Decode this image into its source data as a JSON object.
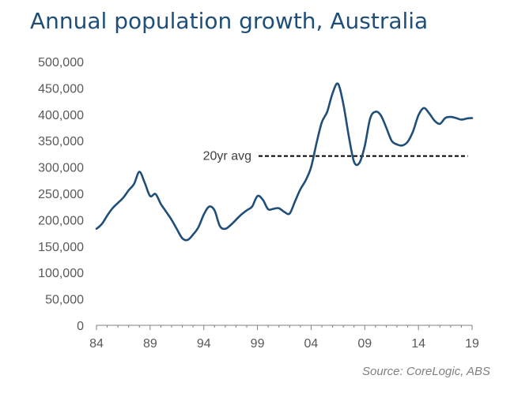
{
  "title": "Annual population growth, Australia",
  "source": "Source: CoreLogic, ABS",
  "colors": {
    "line": "#1f4e79",
    "title": "#1f4e79",
    "axis": "#808080",
    "avg": "#000000"
  },
  "chart_data": {
    "type": "line",
    "title": "Annual population growth, Australia",
    "xlabel": "",
    "ylabel": "",
    "x_ticks": [
      "84",
      "89",
      "94",
      "99",
      "04",
      "09",
      "14",
      "19"
    ],
    "y_ticks": [
      "0",
      "50,000",
      "100,000",
      "150,000",
      "200,000",
      "250,000",
      "300,000",
      "350,000",
      "400,000",
      "450,000",
      "500,000"
    ],
    "xlim": [
      1984,
      2019
    ],
    "ylim": [
      0,
      500000
    ],
    "grid": false,
    "series": [
      {
        "x": [
          1984.0,
          1984.5,
          1985.0,
          1985.5,
          1986.0,
          1986.5,
          1987.0,
          1987.5,
          1988.0,
          1988.5,
          1989.0,
          1989.5,
          1990.0,
          1990.5,
          1991.0,
          1991.5,
          1992.0,
          1992.5,
          1993.0,
          1993.5,
          1994.0,
          1994.5,
          1995.0,
          1995.5,
          1996.0,
          1996.5,
          1997.0,
          1997.5,
          1998.0,
          1998.5,
          1999.0,
          1999.5,
          2000.0,
          2000.5,
          2001.0,
          2001.5,
          2002.0,
          2002.5,
          2003.0,
          2003.5,
          2004.0,
          2004.5,
          2005.0,
          2005.5,
          2006.0,
          2006.5,
          2007.0,
          2007.5,
          2008.0,
          2008.5,
          2009.0,
          2009.5,
          2010.0,
          2010.5,
          2011.0,
          2011.5,
          2012.0,
          2012.5,
          2013.0,
          2013.5,
          2014.0,
          2014.5,
          2015.0,
          2015.5,
          2016.0,
          2016.5,
          2017.0,
          2017.5,
          2018.0,
          2018.5,
          2019.0
        ],
        "values": [
          183000,
          192000,
          208000,
          222000,
          232000,
          242000,
          256000,
          268000,
          291000,
          270000,
          245000,
          249000,
          230000,
          215000,
          200000,
          182000,
          165000,
          162000,
          172000,
          186000,
          210000,
          225000,
          218000,
          188000,
          183000,
          190000,
          200000,
          210000,
          218000,
          225000,
          245000,
          238000,
          220000,
          221000,
          222000,
          215000,
          212000,
          235000,
          258000,
          275000,
          300000,
          345000,
          385000,
          405000,
          440000,
          458000,
          420000,
          360000,
          310000,
          308000,
          340000,
          392000,
          405000,
          398000,
          375000,
          350000,
          343000,
          341000,
          348000,
          368000,
          398000,
          412000,
          402000,
          388000,
          382000,
          393000,
          395000,
          393000,
          390000,
          392000,
          393000
        ]
      }
    ],
    "annotations": [
      {
        "text": "20yr avg",
        "y": 321000
      }
    ]
  }
}
